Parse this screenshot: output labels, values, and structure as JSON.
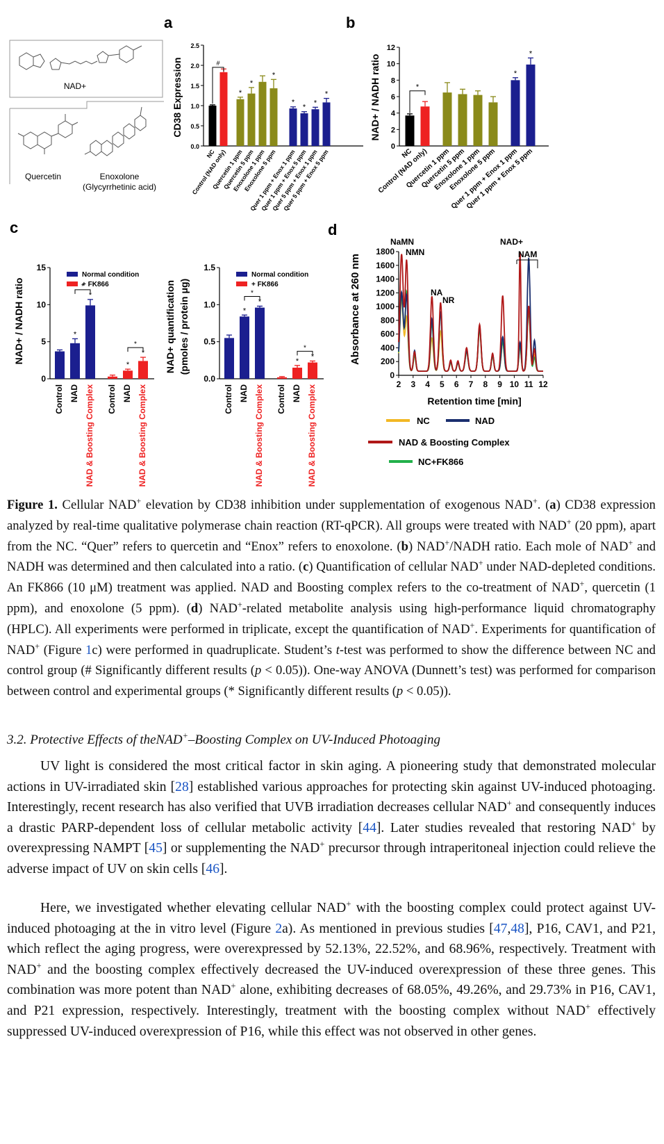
{
  "panels": {
    "a": {
      "label": "a",
      "structures": [
        "NAD+",
        "Quercetin",
        "Enoxolone",
        "(Glycyrrhetinic acid)"
      ],
      "ylabel": "CD38 Expression",
      "ticks": [
        "0.0",
        "0.5",
        "1.0",
        "1.5",
        "2.0",
        "2.5"
      ],
      "categories": [
        "NC",
        "Control (NAD only)",
        "Quercetin 1 ppm",
        "Quercetin 5 ppm",
        "Enoxolone 1 ppm",
        "Enoxolone 5 ppm",
        "Quer 1 ppm + Enox 1 ppm",
        "Quer 1 ppm + Enox 5 ppm",
        "Quer 5 ppm + Enox 1 ppm",
        "Quer 5 ppm + Enox 5 ppm"
      ],
      "values": [
        1.0,
        1.83,
        1.16,
        1.3,
        1.59,
        1.43,
        0.93,
        0.81,
        0.91,
        1.08
      ],
      "errors": [
        0.02,
        0.08,
        0.05,
        0.15,
        0.15,
        0.22,
        0.04,
        0.04,
        0.05,
        0.1
      ],
      "sig": [
        "",
        "",
        "*",
        "*",
        "",
        "*",
        "*",
        "*",
        "*",
        "*"
      ],
      "hash": "#",
      "ymax": 2.5
    },
    "b": {
      "label": "b",
      "ylabel": "NAD+ / NADH ratio",
      "ticks": [
        "0",
        "2",
        "4",
        "6",
        "8",
        "10",
        "12"
      ],
      "categories": [
        "NC",
        "Control (NAD only)",
        "Quercetin 1 ppm",
        "Quercetin 5 ppm",
        "Enoxolone 1 ppm",
        "Enoxolone 5 ppm",
        "Quer 1 ppm + Enox 1 ppm",
        "Quer 1 ppm + Enox 5 ppm"
      ],
      "values": [
        3.7,
        4.8,
        6.5,
        6.3,
        6.2,
        5.3,
        8.0,
        9.9
      ],
      "errors": [
        0.2,
        0.6,
        1.2,
        0.6,
        0.5,
        0.7,
        0.3,
        0.8
      ],
      "sig": [
        "",
        "",
        "",
        "",
        "",
        "",
        "*",
        "*"
      ],
      "hash": "*",
      "ymax": 12
    },
    "c": {
      "label": "c",
      "legend": [
        "Normal condition",
        "+ FK866"
      ],
      "left": {
        "ylabel": "NAD+ / NADH ratio",
        "ticks": [
          "0",
          "5",
          "10",
          "15"
        ],
        "values": [
          3.7,
          4.8,
          9.9,
          0.3,
          1.1,
          2.4
        ],
        "errors": [
          0.2,
          0.6,
          0.8,
          0.2,
          0.2,
          0.5
        ],
        "sig": [
          "",
          "*",
          "*",
          "",
          "*",
          "*"
        ],
        "ymax": 15
      },
      "right": {
        "ylabel1": "NAD+ quantification",
        "ylabel2": "(pmoles / protein μg)",
        "ticks": [
          "0.0",
          "0.5",
          "1.0",
          "1.5"
        ],
        "values": [
          0.55,
          0.84,
          0.96,
          0.02,
          0.15,
          0.22
        ],
        "errors": [
          0.04,
          0.02,
          0.02,
          0.01,
          0.03,
          0.02
        ],
        "sig": [
          "",
          "*",
          "*",
          "",
          "*",
          "*"
        ],
        "ymax": 1.5
      },
      "xlabels": [
        "Control",
        "NAD",
        "NAD & Boosting Complex",
        "Control",
        "NAD",
        "NAD & Boosting Complex"
      ]
    },
    "d": {
      "label": "d",
      "ylabel": "Absorbance at 260 nm",
      "xlabel": "Retention time [min]",
      "yticks": [
        "0",
        "200",
        "400",
        "600",
        "800",
        "1000",
        "1200",
        "1400",
        "1600",
        "1800"
      ],
      "xticks": [
        "2",
        "3",
        "4",
        "5",
        "6",
        "7",
        "8",
        "9",
        "10",
        "11",
        "12"
      ],
      "peaks": [
        "NaMN",
        "NMN",
        "NA",
        "NR",
        "NAD+",
        "NAM"
      ],
      "legend": [
        "NC",
        "NAD",
        "NAD & Boosting Complex",
        "NC+FK866"
      ]
    }
  },
  "colors": {
    "black": "#000000",
    "red": "#ee2222",
    "olive": "#8a8a1a",
    "navy": "#1b1f8f",
    "nc_line": "#f2b824",
    "nad_line": "#1a2e6e",
    "boost_line": "#b01818",
    "fk_line": "#22b04a",
    "link": "#1a55c4"
  },
  "caption": {
    "fig": "Figure 1.",
    "s1": " Cellular NAD",
    "s2": " elevation by CD38 inhibition under supplementation of exogenous NAD",
    "s3": ". (",
    "a": "a",
    "s4": ") CD38 expression analyzed by real-time qualitative polymerase chain reaction (RT-qPCR). All groups were treated with NAD",
    "s5": " (20 ppm), apart from the NC. “Quer” refers to quercetin and “Enox” refers to enoxolone. (",
    "b": "b",
    "s6": ") NAD",
    "s7": "/NADH ratio. Each mole of NAD",
    "s8": " and NADH was determined and then calculated into a ratio. (",
    "c": "c",
    "s9": ") Quantification of cellular NAD",
    "s10": " under NAD-depleted conditions. An FK866 (10 μM) treatment was applied. NAD and Boosting complex refers to the co-treatment of NAD",
    "s11": ", quercetin (1 ppm), and enoxolone (5 ppm). (",
    "d": "d",
    "s12": ") NAD",
    "s13": "-related metabolite analysis using high-performance liquid chromatography (HPLC). All experiments were performed in triplicate, except the quantification of NAD",
    "s14": ". Experiments for quantification of NAD",
    "s15": " (Figure ",
    "fig_link": "1",
    "s16": "c) were performed in quadruplicate. Student’s ",
    "t": "t",
    "s17": "-test was performed to show the difference between NC and control group (# Significantly different results (",
    "p": "p",
    "s18": " < 0.05)). One-way ANOVA (Dunnett’s test) was performed for comparison between control and experimental groups (* Significantly different results (",
    "p2": "p",
    "s19": " < 0.05)).",
    "plus": "+"
  },
  "section": {
    "title1": "3.2. Protective Effects of theNAD",
    "plus": "+",
    "title2": "–Boosting Complex on UV-Induced Photoaging"
  },
  "para1": {
    "t1": "UV light is considered the most critical factor in skin aging. A pioneering study that demonstrated molecular actions in UV-irradiated skin [",
    "r28": "28",
    "t2": "] established various approaches for protecting skin against UV-induced photoaging. Interestingly, recent research has also verified that UVB irradiation decreases cellular NAD",
    "t3": " and consequently induces a drastic PARP-dependent loss of cellular metabolic activity [",
    "r44": "44",
    "t4": "]. Later studies revealed that restoring NAD",
    "t5": " by overexpressing NAMPT [",
    "r45": "45",
    "t6": "] or supplementing the NAD",
    "t7": " precursor through intraperitoneal injection could relieve the adverse impact of UV on skin cells [",
    "r46": "46",
    "t8": "]."
  },
  "para2": {
    "t1": "Here, we investigated whether elevating cellular NAD",
    "t2": " with the boosting complex could protect against UV-induced photoaging at the in vitro level (Figure ",
    "f2": "2",
    "t3": "a). As mentioned in previous studies [",
    "r47": "47",
    "comma": ",",
    "r48": "48",
    "t4": "], P16, CAV1, and P21, which reflect the aging progress, were overexpressed by 52.13%, 22.52%, and 68.96%, respectively. Treatment with NAD",
    "t5": " and the boosting complex effectively decreased the UV-induced overexpression of these three genes. This combination was more potent than NAD",
    "t6": " alone, exhibiting decreases of 68.05%, 49.26%, and 29.73% in P16, CAV1, and P21 expression, respectively. Interestingly, treatment with the boosting complex without NAD",
    "t7": " effectively suppressed UV-induced overexpression of P16, while this effect was not observed in other genes."
  }
}
